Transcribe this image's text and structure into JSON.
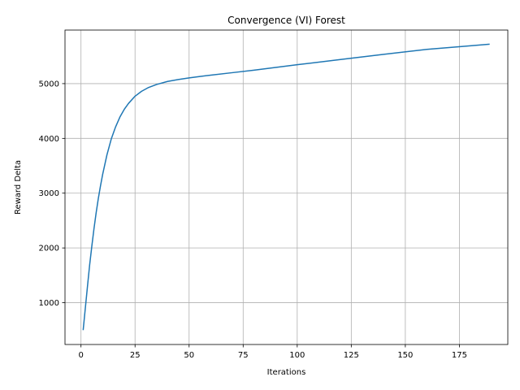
{
  "chart_data": {
    "type": "line",
    "title": "Convergence (VI) Forest",
    "xlabel": "Iterations",
    "ylabel": "Reward Delta",
    "xlim": [
      -7.4,
      197.4
    ],
    "ylim": [
      237,
      5978
    ],
    "xticks": [
      0,
      25,
      50,
      75,
      100,
      125,
      150,
      175
    ],
    "yticks": [
      1000,
      2000,
      3000,
      4000,
      5000
    ],
    "grid": true,
    "legend": "none",
    "series": [
      {
        "color": "#1f77b4",
        "x": [
          1,
          2,
          3,
          4,
          5,
          6,
          7,
          8,
          9,
          10,
          12,
          14,
          16,
          18,
          20,
          22,
          25,
          28,
          31,
          35,
          40,
          45,
          50,
          55,
          60,
          70,
          80,
          100,
          120,
          140,
          160,
          180,
          189
        ],
        "y": [
          500,
          900,
          1300,
          1690,
          2030,
          2350,
          2640,
          2900,
          3130,
          3340,
          3700,
          3990,
          4210,
          4390,
          4530,
          4640,
          4770,
          4860,
          4925,
          4985,
          5040,
          5075,
          5105,
          5130,
          5155,
          5200,
          5245,
          5345,
          5440,
          5535,
          5625,
          5690,
          5720
        ]
      }
    ]
  }
}
